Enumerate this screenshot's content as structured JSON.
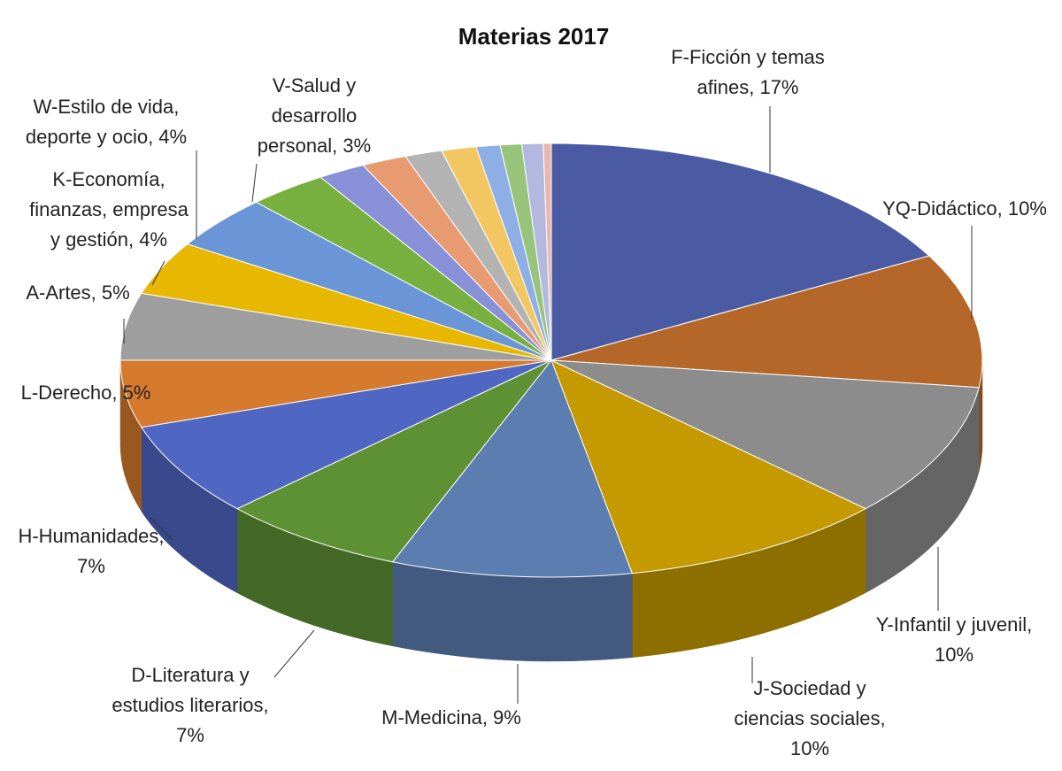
{
  "chart_data": {
    "type": "pie",
    "subtype": "3d-pie",
    "title": "Materias 2017",
    "start_angle": "12 o'clock",
    "direction": "clockwise",
    "legend": "none",
    "slices": [
      {
        "name": "F-Ficción y temas afines",
        "value": 17,
        "color": "#4A5BA3",
        "label_lines": [
          "F-Ficción y temas",
          "afines, 17%"
        ]
      },
      {
        "name": "YQ-Didáctico",
        "value": 10,
        "color": "#B5672A",
        "label_lines": [
          "YQ-Didáctico, 10%"
        ]
      },
      {
        "name": "Y-Infantil y juvenil",
        "value": 10,
        "color": "#8C8C8C",
        "label_lines": [
          "Y-Infantil y juvenil,",
          "10%"
        ]
      },
      {
        "name": "J-Sociedad y ciencias sociales",
        "value": 10,
        "color": "#C49A00",
        "label_lines": [
          "J-Sociedad y",
          "ciencias sociales,",
          "10%"
        ]
      },
      {
        "name": "M-Medicina",
        "value": 9,
        "color": "#5B7DB0",
        "label_lines": [
          "M-Medicina, 9%"
        ]
      },
      {
        "name": "D-Literatura y estudios literarios",
        "value": 7,
        "color": "#5E9134",
        "label_lines": [
          "D-Literatura y",
          "estudios literarios,",
          "7%"
        ]
      },
      {
        "name": "H-Humanidades",
        "value": 7,
        "color": "#4F67C2",
        "label_lines": [
          "H-Humanidades,",
          "7%"
        ]
      },
      {
        "name": "L-Derecho",
        "value": 5,
        "color": "#D67A2E",
        "label_lines": [
          "L-Derecho, 5%"
        ]
      },
      {
        "name": "A-Artes",
        "value": 5,
        "color": "#9E9E9E",
        "label_lines": [
          "A-Artes, 5%"
        ]
      },
      {
        "name": "K-Economía, finanzas, empresa y gestión",
        "value": 4,
        "color": "#E8B800",
        "label_lines": [
          "K-Economía,",
          "finanzas, empresa",
          "y gestión, 4%"
        ]
      },
      {
        "name": "W-Estilo de vida, deporte y ocio",
        "value": 4,
        "color": "#6A95D6",
        "label_lines": [
          "W-Estilo de vida,",
          "deporte y ocio, 4%"
        ]
      },
      {
        "name": "V-Salud y desarrollo personal",
        "value": 3,
        "color": "#78B040",
        "label_lines": [
          "V-Salud y",
          "desarrollo",
          "personal, 3%"
        ]
      },
      {
        "name": "",
        "value": 1.8,
        "color": "#8890D8",
        "label_lines": []
      },
      {
        "name": "",
        "value": 1.7,
        "color": "#E89A70",
        "label_lines": []
      },
      {
        "name": "",
        "value": 1.4,
        "color": "#B3B3B3",
        "label_lines": []
      },
      {
        "name": "",
        "value": 1.3,
        "color": "#F2C762",
        "label_lines": []
      },
      {
        "name": "",
        "value": 0.9,
        "color": "#8EAEE6",
        "label_lines": []
      },
      {
        "name": "",
        "value": 0.8,
        "color": "#97C47A",
        "label_lines": []
      },
      {
        "name": "",
        "value": 0.8,
        "color": "#B3B8DF",
        "label_lines": []
      },
      {
        "name": "",
        "value": 0.3,
        "color": "#EBB6B0",
        "label_lines": []
      }
    ]
  }
}
